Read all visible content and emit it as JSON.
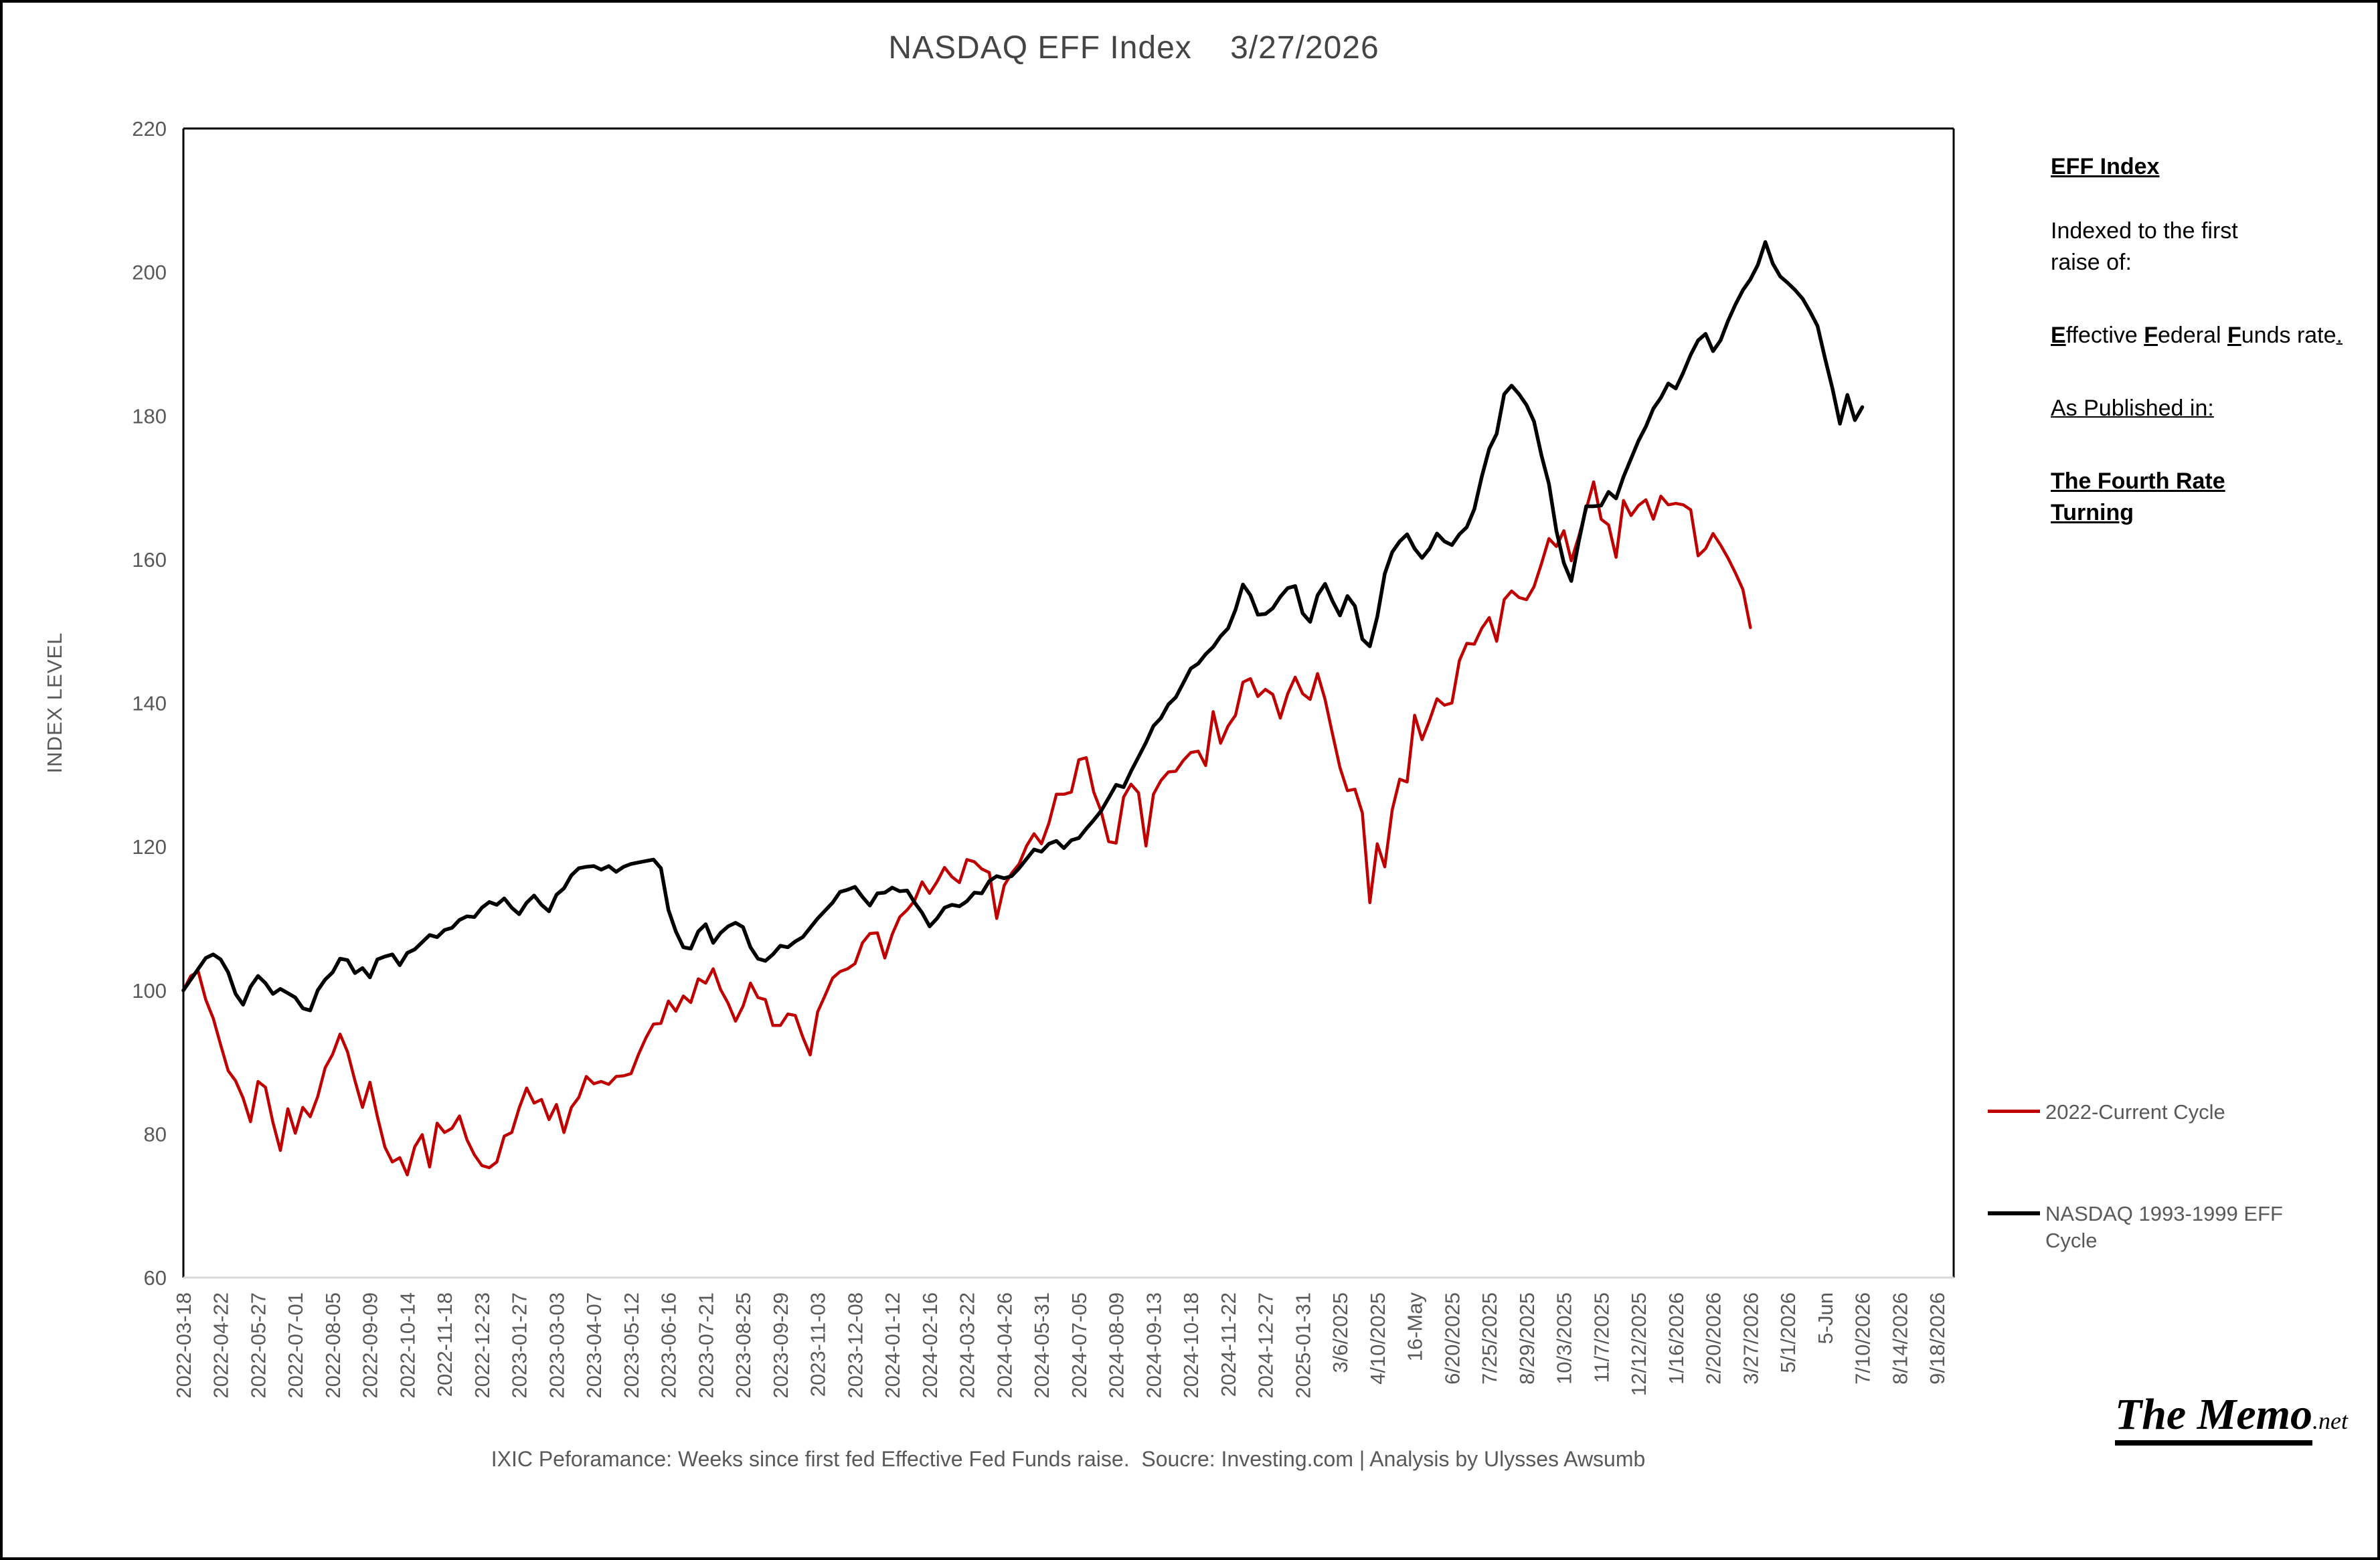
{
  "title": "NASDAQ EFF Index    3/27/2026",
  "y_axis": {
    "label": "INDEX LEVEL",
    "ticks": [
      60,
      80,
      100,
      120,
      140,
      160,
      180,
      200,
      220
    ]
  },
  "x_axis": {
    "labels": [
      "2022-03-18",
      "2022-04-22",
      "2022-05-27",
      "2022-07-01",
      "2022-08-05",
      "2022-09-09",
      "2022-10-14",
      "2022-11-18",
      "2022-12-23",
      "2023-01-27",
      "2023-03-03",
      "2023-04-07",
      "2023-05-12",
      "2023-06-16",
      "2023-07-21",
      "2023-08-25",
      "2023-09-29",
      "2023-11-03",
      "2023-12-08",
      "2024-01-12",
      "2024-02-16",
      "2024-03-22",
      "2024-04-26",
      "2024-05-31",
      "2024-07-05",
      "2024-08-09",
      "2024-09-13",
      "2024-10-18",
      "2024-11-22",
      "2024-12-27",
      "2025-01-31",
      "3/6/2025",
      "4/10/2025",
      "16-May",
      "6/20/2025",
      "7/25/2025",
      "8/29/2025",
      "10/3/2025",
      "11/7/2025",
      "12/12/2025",
      "1/16/2026",
      "2/20/2026",
      "3/27/2026",
      "5/1/2026",
      "5-Jun",
      "7/10/2026",
      "8/14/2026",
      "9/18/2026"
    ]
  },
  "legend": [
    {
      "label": "2022-Current Cycle",
      "color": "#C00000"
    },
    {
      "label": "NASDAQ 1993-1999 EFF Cycle",
      "color": "#000000"
    }
  ],
  "sidebar": {
    "heading": "EFF Index",
    "indexed_1": "Indexed to the first",
    "indexed_2": "raise of:",
    "eff_e": "E",
    "eff_rest1": "ffective ",
    "eff_f1": "F",
    "eff_rest2": "ederal ",
    "eff_f2": "F",
    "eff_rest3": "unds rate",
    "eff_dot": ".",
    "published": "As Published in:",
    "book_1": "The Fourth Rate",
    "book_2": "Turning"
  },
  "caption": "IXIC Peforamance: Weeks since first fed Effective Fed Funds raise.  Soucre: Investing.com | Analysis by Ulysses Awsumb",
  "logo": {
    "main": "The Memo",
    "suffix": ".net"
  },
  "colors": {
    "red_series": "#C00000",
    "black_series": "#000000",
    "axis_text": "#595959",
    "bottom_axis_line": "#D9D9D9",
    "plot_border": "#000000"
  },
  "chart_data": {
    "type": "line",
    "title": "NASDAQ EFF Index 3/27/2026",
    "xlabel": "Weeks since first fed Effective Fed Funds raise (x ticks every 5 weeks)",
    "ylabel": "INDEX LEVEL",
    "ylim": [
      60,
      220
    ],
    "x_tick_step_weeks": 5,
    "grid": false,
    "legend_position": "right",
    "series": [
      {
        "name": "2022-Current Cycle",
        "color": "#C00000",
        "start_week": 0,
        "values": [
          100,
          102,
          102.6,
          98.7,
          96.1,
          92.4,
          88.8,
          87.4,
          85,
          81.7,
          87.3,
          86.5,
          81.6,
          77.7,
          83.5,
          80.1,
          83.7,
          82.4,
          85.2,
          89.2,
          91.1,
          93.9,
          91.4,
          87.4,
          83.7,
          87.2,
          82.4,
          78.2,
          76.1,
          76.7,
          74.3,
          78.2,
          79.9,
          75.4,
          81.5,
          80.2,
          80.8,
          82.5,
          79.2,
          77.1,
          75.6,
          75.3,
          76.1,
          79.7,
          80.2,
          83.6,
          86.4,
          84.3,
          84.8,
          82,
          84.1,
          80.2,
          83.7,
          85.1,
          88,
          87,
          87.3,
          86.9,
          88,
          88.1,
          88.4,
          91.1,
          93.4,
          95.3,
          95.4,
          98.5,
          97.1,
          99.2,
          98.3,
          101.6,
          101,
          103,
          100.1,
          98.2,
          95.7,
          97.8,
          101,
          99,
          98.7,
          95.1,
          95.1,
          96.7,
          96.5,
          93.5,
          91,
          97,
          99.3,
          101.7,
          102.6,
          103,
          103.7,
          106.6,
          107.9,
          108,
          104.5,
          107.8,
          110.2,
          111.2,
          112.5,
          115.1,
          113.5,
          115.1,
          117.1,
          115.8,
          115,
          118.2,
          117.9,
          116.9,
          116.4,
          110,
          114.6,
          116.3,
          117.6,
          120.1,
          121.8,
          120.4,
          123.3,
          127.3,
          127.3,
          127.6,
          132.1,
          132.4,
          127.6,
          124.9,
          120.7,
          120.5,
          126.9,
          128.7,
          127.5,
          120.1,
          127.3,
          129.2,
          130.4,
          130.5,
          132,
          133.1,
          133.3,
          131.3,
          138.8,
          134.4,
          136.8,
          138.3,
          142.9,
          143.4,
          140.9,
          141.9,
          141.2,
          137.9,
          141.3,
          143.6,
          141.3,
          140.5,
          144.1,
          140.5,
          135.7,
          131,
          127.8,
          128,
          124.7,
          112.2,
          120.4,
          117.2,
          125.1,
          129.4,
          129,
          138.3,
          134.9,
          137.6,
          140.6,
          139.7,
          140,
          145.9,
          148.3,
          148.2,
          150.4,
          151.9,
          148.6,
          154.4,
          155.6,
          154.7,
          154.4,
          156.2,
          159.4,
          162.9,
          161.8,
          164,
          159.8,
          163.2,
          167,
          170.8,
          165.6,
          164.8,
          160.3,
          168.2,
          166.1,
          167.5,
          168.3,
          165.6,
          168.8,
          167.6,
          167.8,
          167.6,
          166.9,
          160.5,
          161.5,
          163.6,
          162,
          160.2,
          158.1,
          155.8,
          150.5
        ]
      },
      {
        "name": "NASDAQ 1993-1999 EFF Cycle",
        "color": "#000000",
        "start_week": 0,
        "values": [
          100,
          101.5,
          103,
          104.5,
          105,
          104.3,
          102.5,
          99.5,
          98,
          100.5,
          102,
          101,
          99.5,
          100.2,
          99.6,
          99,
          97.5,
          97.2,
          100,
          101.5,
          102.5,
          104.4,
          104.2,
          102.4,
          103.1,
          101.8,
          104.3,
          104.7,
          105,
          103.5,
          105.2,
          105.7,
          106.7,
          107.7,
          107.4,
          108.4,
          108.7,
          109.8,
          110.3,
          110.2,
          111.5,
          112.3,
          111.9,
          112.8,
          111.5,
          110.6,
          112.2,
          113.2,
          111.9,
          111,
          113.3,
          114.2,
          116,
          117,
          117.2,
          117.3,
          116.8,
          117.3,
          116.5,
          117.2,
          117.6,
          117.8,
          118,
          118.2,
          117,
          111.2,
          108.2,
          106,
          105.8,
          108.2,
          109.2,
          106.6,
          108,
          108.9,
          109.4,
          108.8,
          106,
          104.4,
          104.1,
          105,
          106.2,
          106,
          106.8,
          107.4,
          108.7,
          110,
          111.1,
          112.2,
          113.7,
          114,
          114.4,
          113,
          111.8,
          113.5,
          113.6,
          114.3,
          113.8,
          113.9,
          112.2,
          110.8,
          108.9,
          110,
          111.5,
          111.9,
          111.7,
          112.4,
          113.6,
          113.5,
          115.2,
          115.9,
          115.6,
          115.9,
          117,
          118.3,
          119.6,
          119.3,
          120.4,
          120.8,
          119.8,
          120.9,
          121.2,
          122.5,
          123.7,
          125,
          126.8,
          128.6,
          128.3,
          130.5,
          132.5,
          134.5,
          136.8,
          137.9,
          139.8,
          140.8,
          142.8,
          144.8,
          145.5,
          146.8,
          147.8,
          149.3,
          150.4,
          153,
          156.5,
          155,
          152.3,
          152.4,
          153.2,
          154.8,
          156,
          156.3,
          152.5,
          151.3,
          155,
          156.6,
          154.2,
          152.2,
          154.9,
          153.5,
          148.9,
          147.9,
          152,
          158,
          161,
          162.5,
          163.5,
          161.5,
          160.2,
          161.5,
          163.6,
          162.5,
          162,
          163.5,
          164.5,
          167,
          171.5,
          175.4,
          177.5,
          183,
          184.2,
          183,
          181.5,
          179.2,
          174.5,
          170.5,
          164,
          159.5,
          157,
          162.5,
          167.4,
          167.4,
          167.5,
          169.4,
          168.5,
          171.5,
          174,
          176.5,
          178.5,
          181,
          182.5,
          184.5,
          183.8,
          186,
          188.5,
          190.5,
          191.4,
          189,
          190.5,
          193.2,
          195.5,
          197.5,
          199,
          201,
          204.2,
          201.2,
          199.4,
          198.5,
          197.5,
          196.3,
          194.5,
          192.5,
          188,
          183.8,
          178.9,
          182.9,
          179.4,
          181.2
        ]
      }
    ]
  }
}
